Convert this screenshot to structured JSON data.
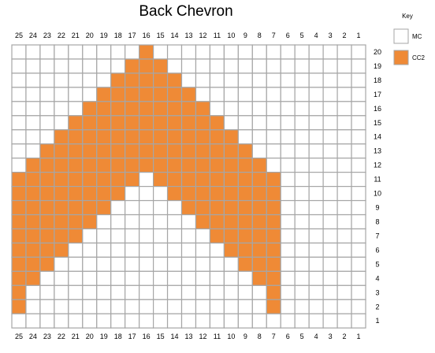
{
  "title": "Back Chevron",
  "key": {
    "heading": "Key",
    "items": [
      {
        "label": "MC",
        "color": "#ffffff"
      },
      {
        "label": "CC2",
        "color": "#ef8a36"
      }
    ]
  },
  "chart_data": {
    "type": "knitting-chart",
    "title": "Back Chevron",
    "columns": [
      25,
      24,
      23,
      22,
      21,
      20,
      19,
      18,
      17,
      16,
      15,
      14,
      13,
      12,
      11,
      10,
      9,
      8,
      7,
      6,
      5,
      4,
      3,
      2,
      1
    ],
    "rows": [
      20,
      19,
      18,
      17,
      16,
      15,
      14,
      13,
      12,
      11,
      10,
      9,
      8,
      7,
      6,
      5,
      4,
      3,
      2,
      1
    ],
    "cc2_runs_by_row": {
      "20": [
        [
          16,
          16
        ]
      ],
      "19": [
        [
          17,
          15
        ]
      ],
      "18": [
        [
          18,
          14
        ]
      ],
      "17": [
        [
          19,
          13
        ]
      ],
      "16": [
        [
          20,
          12
        ]
      ],
      "15": [
        [
          21,
          11
        ]
      ],
      "14": [
        [
          22,
          10
        ]
      ],
      "13": [
        [
          23,
          9
        ]
      ],
      "12": [
        [
          24,
          8
        ]
      ],
      "11": [
        [
          25,
          17
        ],
        [
          15,
          7
        ]
      ],
      "10": [
        [
          25,
          18
        ],
        [
          14,
          7
        ]
      ],
      "9": [
        [
          25,
          19
        ],
        [
          13,
          7
        ]
      ],
      "8": [
        [
          25,
          20
        ],
        [
          12,
          7
        ]
      ],
      "7": [
        [
          25,
          21
        ],
        [
          11,
          7
        ]
      ],
      "6": [
        [
          25,
          22
        ],
        [
          10,
          7
        ]
      ],
      "5": [
        [
          25,
          23
        ],
        [
          9,
          7
        ]
      ],
      "4": [
        [
          25,
          24
        ],
        [
          8,
          7
        ]
      ],
      "3": [
        [
          25,
          25
        ],
        [
          7,
          7
        ]
      ],
      "2": [
        [
          25,
          25
        ],
        [
          7,
          7
        ]
      ],
      "1": []
    },
    "colors": {
      "MC": "#ffffff",
      "CC2": "#ef8a36",
      "grid": "#a6a6a6"
    }
  }
}
